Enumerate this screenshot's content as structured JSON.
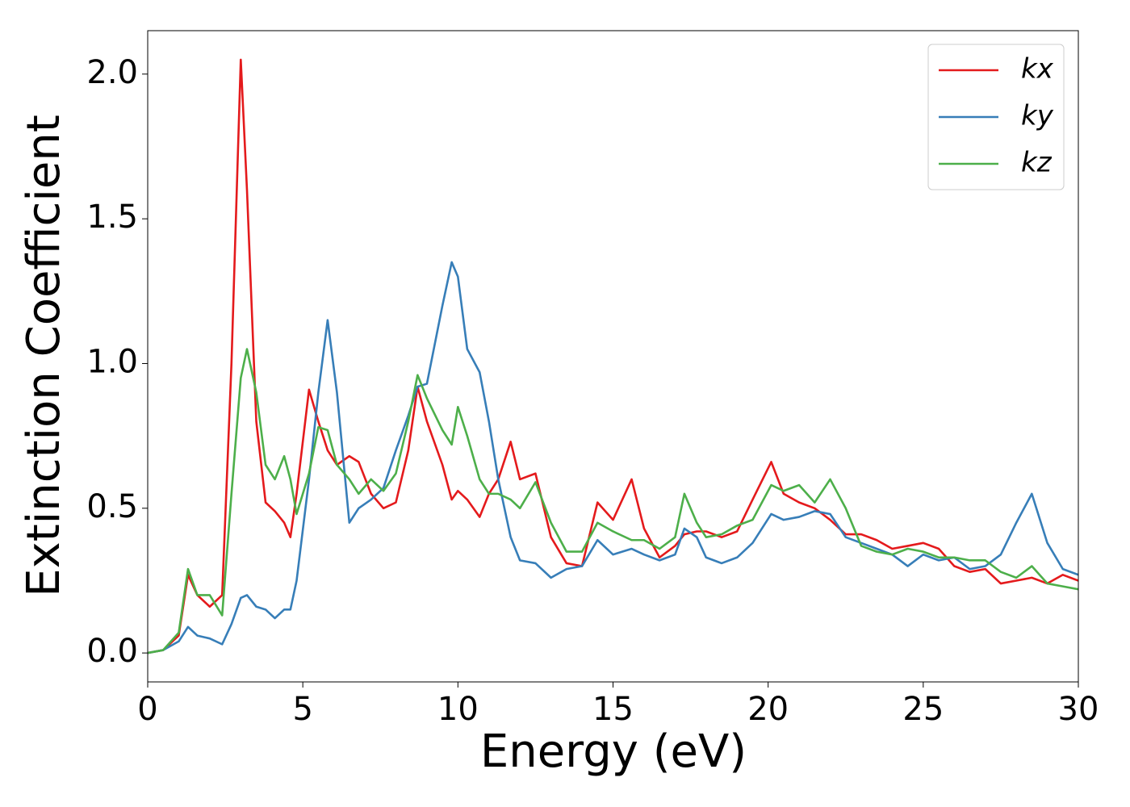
{
  "chart_data": {
    "type": "line",
    "x_label": "Energy (eV)",
    "y_label": "Extinction Coefficient",
    "x": [
      0,
      0.5,
      1,
      1.3,
      1.6,
      2,
      2.4,
      2.7,
      3,
      3.2,
      3.5,
      3.8,
      4.1,
      4.4,
      4.6,
      4.8,
      5.2,
      5.5,
      5.8,
      6.1,
      6.5,
      6.8,
      7.2,
      7.6,
      8,
      8.4,
      8.7,
      9,
      9.5,
      9.8,
      10,
      10.3,
      10.7,
      11,
      11.3,
      11.7,
      12,
      12.5,
      13,
      13.5,
      14,
      14.5,
      15,
      15.6,
      16,
      16.5,
      17,
      17.3,
      17.7,
      18,
      18.5,
      19,
      19.5,
      20.1,
      20.5,
      21,
      21.5,
      22,
      22.5,
      23,
      23.5,
      24,
      24.5,
      25,
      25.5,
      26,
      26.5,
      27,
      27.5,
      28,
      28.5,
      29,
      29.5,
      30
    ],
    "series": [
      {
        "name": "kx",
        "color": "#e41a1c",
        "values": [
          0,
          0.01,
          0.06,
          0.27,
          0.2,
          0.16,
          0.2,
          1.0,
          2.05,
          1.6,
          0.8,
          0.52,
          0.49,
          0.45,
          0.4,
          0.55,
          0.91,
          0.8,
          0.7,
          0.65,
          0.68,
          0.66,
          0.55,
          0.5,
          0.52,
          0.7,
          0.92,
          0.8,
          0.65,
          0.53,
          0.56,
          0.53,
          0.47,
          0.55,
          0.6,
          0.73,
          0.6,
          0.62,
          0.4,
          0.31,
          0.3,
          0.52,
          0.46,
          0.6,
          0.43,
          0.33,
          0.37,
          0.41,
          0.42,
          0.42,
          0.4,
          0.42,
          0.53,
          0.66,
          0.55,
          0.52,
          0.5,
          0.46,
          0.41,
          0.41,
          0.39,
          0.36,
          0.37,
          0.38,
          0.36,
          0.3,
          0.28,
          0.29,
          0.24,
          0.25,
          0.26,
          0.24,
          0.27,
          0.25
        ]
      },
      {
        "name": "ky",
        "color": "#377eb8",
        "values": [
          0,
          0.01,
          0.04,
          0.09,
          0.06,
          0.05,
          0.03,
          0.1,
          0.19,
          0.2,
          0.16,
          0.15,
          0.12,
          0.15,
          0.15,
          0.25,
          0.6,
          0.9,
          1.15,
          0.9,
          0.45,
          0.5,
          0.53,
          0.57,
          0.7,
          0.82,
          0.92,
          0.93,
          1.2,
          1.35,
          1.3,
          1.05,
          0.97,
          0.8,
          0.6,
          0.4,
          0.32,
          0.31,
          0.26,
          0.29,
          0.3,
          0.39,
          0.34,
          0.36,
          0.34,
          0.32,
          0.34,
          0.43,
          0.4,
          0.33,
          0.31,
          0.33,
          0.38,
          0.48,
          0.46,
          0.47,
          0.49,
          0.48,
          0.4,
          0.38,
          0.36,
          0.34,
          0.3,
          0.34,
          0.32,
          0.33,
          0.29,
          0.3,
          0.34,
          0.45,
          0.55,
          0.38,
          0.29,
          0.27
        ]
      },
      {
        "name": "kz",
        "color": "#4daf4a",
        "values": [
          0,
          0.01,
          0.07,
          0.29,
          0.2,
          0.2,
          0.13,
          0.55,
          0.95,
          1.05,
          0.9,
          0.65,
          0.6,
          0.68,
          0.6,
          0.48,
          0.62,
          0.78,
          0.77,
          0.65,
          0.6,
          0.55,
          0.6,
          0.56,
          0.62,
          0.8,
          0.96,
          0.88,
          0.77,
          0.72,
          0.85,
          0.75,
          0.6,
          0.55,
          0.55,
          0.53,
          0.5,
          0.59,
          0.45,
          0.35,
          0.35,
          0.45,
          0.42,
          0.39,
          0.39,
          0.36,
          0.4,
          0.55,
          0.45,
          0.4,
          0.41,
          0.44,
          0.46,
          0.58,
          0.56,
          0.58,
          0.52,
          0.6,
          0.5,
          0.37,
          0.35,
          0.34,
          0.36,
          0.35,
          0.33,
          0.33,
          0.32,
          0.32,
          0.28,
          0.26,
          0.3,
          0.24,
          0.23,
          0.22
        ]
      }
    ],
    "xlim": [
      0,
      30
    ],
    "xticks": [
      0,
      5,
      10,
      15,
      20,
      25,
      30
    ],
    "ylim": [
      -0.1,
      2.15
    ],
    "yticks": [
      {
        "value": 0,
        "label": "0.0"
      },
      0.5,
      {
        "value": 1,
        "label": "1.0"
      },
      1.5,
      {
        "value": 2,
        "label": "2.0"
      }
    ],
    "legend": "upper right",
    "grid": false
  }
}
